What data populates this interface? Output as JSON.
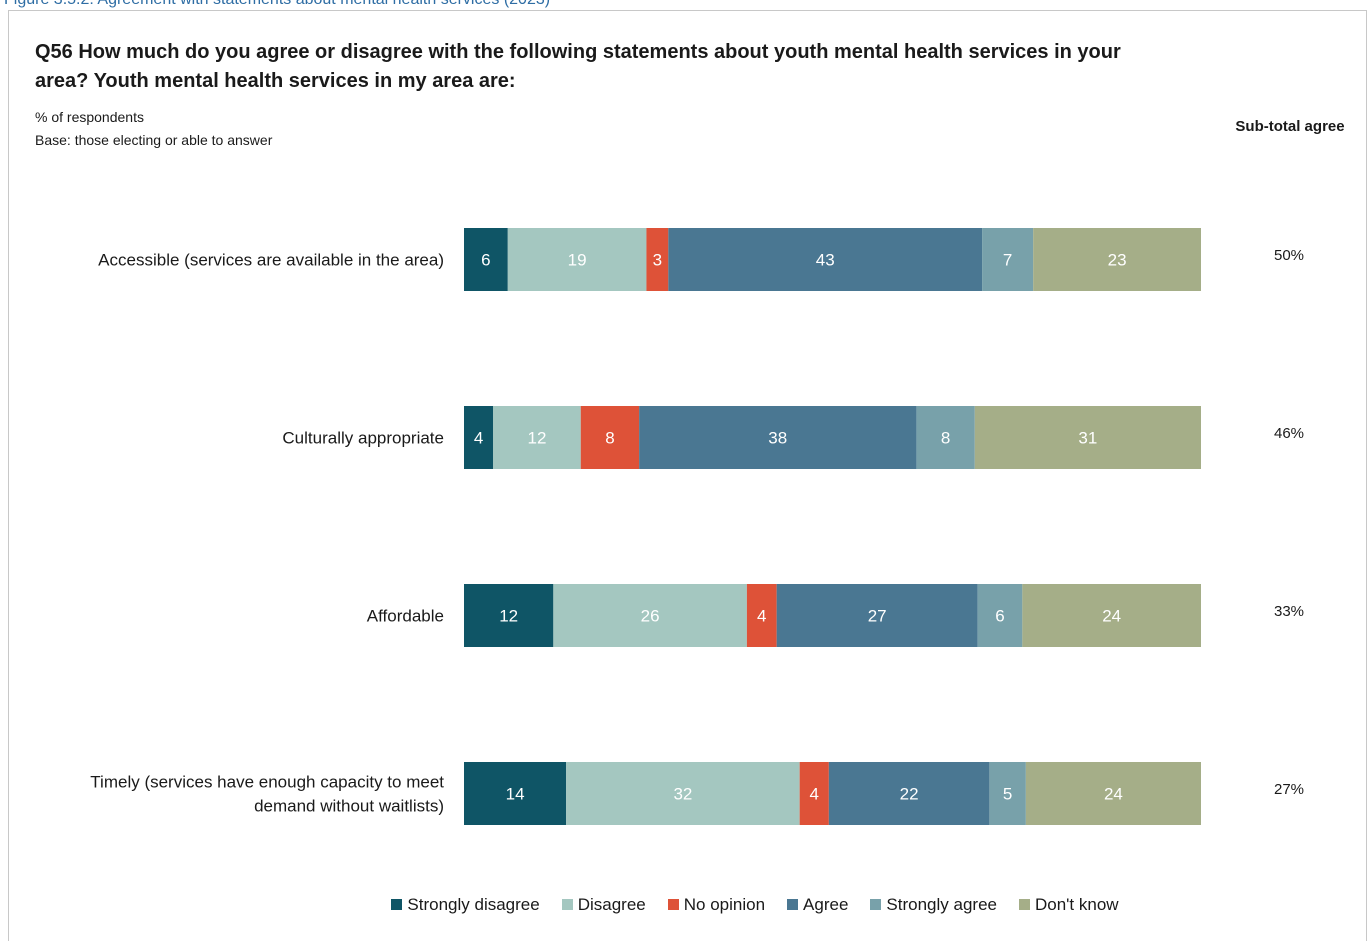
{
  "figure_caption": "Figure 3.5.2: Agreement with statements about mental health services (2023)",
  "question": "Q56 How much do you agree or disagree with the following statements about youth mental health services in your area? Youth mental health services in my area are:",
  "subtitle_line1": "% of respondents",
  "subtitle_line2": "Base: those electing or able to answer",
  "subtotal_header": "Sub-total agree",
  "chart_data": {
    "type": "bar",
    "orientation": "horizontal",
    "stacked": true,
    "categories": [
      [
        "Accessible (services are available in the area)"
      ],
      [
        "Culturally appropriate"
      ],
      [
        "Affordable"
      ],
      [
        "Timely (services have enough capacity to meet",
        "demand without waitlists)"
      ]
    ],
    "series": [
      {
        "name": "Strongly disagree",
        "color": "#0f5566",
        "values": [
          6,
          4,
          12,
          14
        ]
      },
      {
        "name": "Disagree",
        "color": "#a4c7c0",
        "values": [
          19,
          12,
          26,
          32
        ]
      },
      {
        "name": "No opinion",
        "color": "#de5238",
        "values": [
          3,
          8,
          4,
          4
        ]
      },
      {
        "name": "Agree",
        "color": "#4a7792",
        "values": [
          43,
          38,
          27,
          22
        ]
      },
      {
        "name": "Strongly agree",
        "color": "#78a1aa",
        "values": [
          7,
          8,
          6,
          5
        ]
      },
      {
        "name": "Don't know",
        "color": "#a5ae88",
        "values": [
          23,
          31,
          24,
          24
        ]
      }
    ],
    "subtotal_agree": [
      "50%",
      "46%",
      "33%",
      "27%"
    ],
    "legend_position": "bottom",
    "grid": false
  }
}
